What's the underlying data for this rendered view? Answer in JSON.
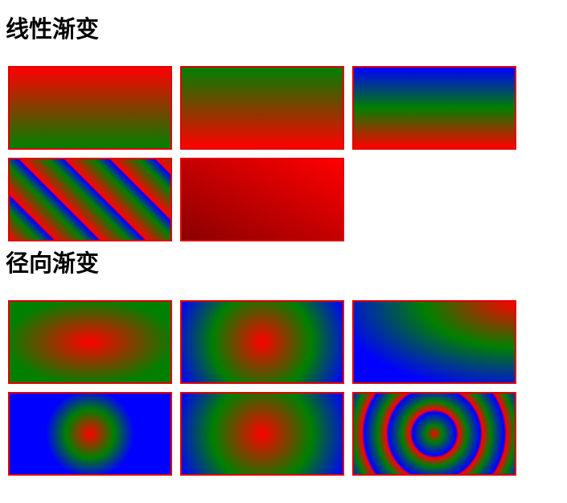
{
  "sections": {
    "linear": {
      "title": "线性渐变"
    },
    "radial": {
      "title": "径向渐变"
    }
  },
  "colors": {
    "red": "#ff0000",
    "green": "#008000",
    "blue": "#0000ff",
    "dark_red": "#8b0000",
    "border": "#e00000"
  }
}
